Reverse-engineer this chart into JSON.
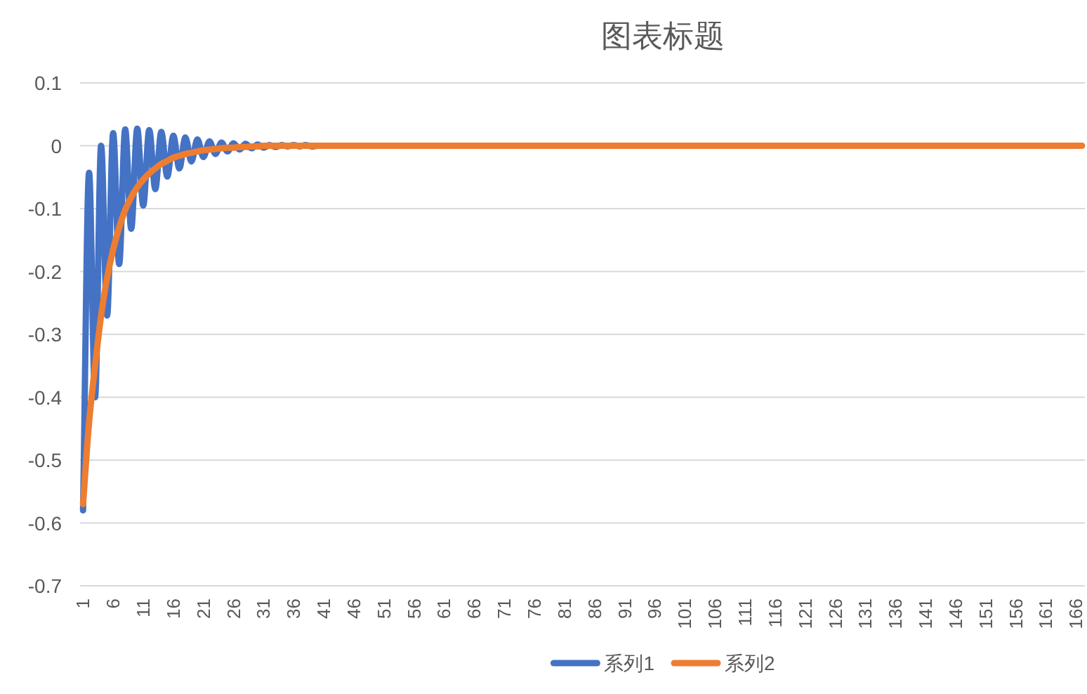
{
  "chart_data": {
    "type": "line",
    "title": "图表标题",
    "categories": [
      "1",
      null,
      null,
      null,
      null,
      "6",
      null,
      null,
      null,
      null,
      "11",
      null,
      null,
      null,
      null,
      "16",
      null,
      null,
      null,
      null,
      "21",
      null,
      null,
      null,
      null,
      "26",
      null,
      null,
      null,
      null,
      "31",
      null,
      null,
      null,
      null,
      "36",
      null,
      null,
      null,
      null,
      "41",
      null,
      null,
      null,
      null,
      "46",
      null,
      null,
      null,
      null,
      "51",
      null,
      null,
      null,
      null,
      "56",
      null,
      null,
      null,
      null,
      "61",
      null,
      null,
      null,
      null,
      "66",
      null,
      null,
      null,
      null,
      "71",
      null,
      null,
      null,
      null,
      "76",
      null,
      null,
      null,
      null,
      "81",
      null,
      null,
      null,
      null,
      "86",
      null,
      null,
      null,
      null,
      "91",
      null,
      null,
      null,
      null,
      "96",
      null,
      null,
      null,
      null,
      "101",
      null,
      null,
      null,
      null,
      "106",
      null,
      null,
      null,
      null,
      "111",
      null,
      null,
      null,
      null,
      "116",
      null,
      null,
      null,
      null,
      "121",
      null,
      null,
      null,
      null,
      "126",
      null,
      null,
      null,
      null,
      "131",
      null,
      null,
      null,
      null,
      "136",
      null,
      null,
      null,
      null,
      "141",
      null,
      null,
      null,
      null,
      "146",
      null,
      null,
      null,
      null,
      "151",
      null,
      null,
      null,
      null,
      "156",
      null,
      null,
      null,
      null,
      "161",
      null,
      null,
      null,
      null,
      "166",
      null
    ],
    "series": [
      {
        "name": "系列1",
        "color": "#4472c4",
        "values": [
          -0.58,
          -0.043,
          -0.4,
          0,
          -0.27,
          0.02,
          -0.188,
          0.026,
          -0.132,
          0.027,
          -0.095,
          0.025,
          -0.069,
          0.022,
          -0.049,
          0.016,
          -0.036,
          0.013,
          -0.025,
          0.01,
          -0.018,
          0.007,
          -0.013,
          0.005,
          -0.009,
          0.004,
          -0.006,
          0.003,
          -0.004,
          0.002,
          -0.003,
          0.001,
          -0.002,
          0.001,
          -0.001,
          0.001,
          -0.001,
          0.001,
          -0.001,
          0,
          0,
          null,
          null,
          null,
          null,
          null,
          null,
          null,
          null,
          null,
          null,
          null,
          null,
          null,
          null,
          null,
          null,
          null,
          null,
          null,
          null,
          null,
          null,
          null,
          null,
          null,
          null,
          null,
          null,
          null,
          null,
          null,
          null,
          null,
          null,
          null,
          null,
          null,
          null,
          null,
          null,
          null,
          null,
          null,
          null,
          null,
          null,
          null,
          null,
          null,
          null,
          null,
          null,
          null,
          null,
          null,
          null,
          null,
          null,
          null,
          null,
          null,
          null,
          null,
          null,
          null,
          null,
          null,
          null,
          null,
          null,
          null,
          null,
          null,
          null,
          null,
          null,
          null,
          null,
          null,
          null,
          null,
          null,
          null,
          null,
          null,
          null,
          null,
          null,
          null,
          null,
          null,
          null,
          null,
          null,
          null,
          null,
          null,
          null,
          null,
          null,
          null,
          null,
          null,
          null,
          null,
          null,
          null,
          null,
          null,
          null,
          null,
          null,
          null,
          null,
          null,
          null,
          null,
          null,
          null,
          null,
          null,
          null,
          null,
          null,
          null,
          null
        ]
      },
      {
        "name": "系列2",
        "color": "#ed7d31",
        "values": [
          -0.57,
          -0.44,
          -0.35,
          -0.27,
          -0.21,
          -0.165,
          -0.13,
          -0.102,
          -0.082,
          -0.066,
          -0.054,
          -0.044,
          -0.036,
          -0.029,
          -0.024,
          -0.019,
          -0.016,
          -0.013,
          -0.011,
          -0.009,
          -0.007,
          -0.006,
          -0.005,
          -0.004,
          -0.003,
          -0.003,
          -0.002,
          -0.002,
          -0.001,
          -0.001,
          0,
          0,
          0,
          0,
          0,
          0,
          0,
          0,
          0,
          0,
          0,
          0,
          0,
          0,
          0,
          0,
          0,
          0,
          0,
          0,
          0,
          0,
          0,
          0,
          0,
          0,
          0,
          0,
          0,
          0,
          0,
          0,
          0,
          0,
          0,
          0,
          0,
          0,
          0,
          0,
          0,
          0,
          0,
          0,
          0,
          0,
          0,
          0,
          0,
          0,
          0,
          0,
          0,
          0,
          0,
          0,
          0,
          0,
          0,
          0,
          0,
          0,
          0,
          0,
          0,
          0,
          0,
          0,
          0,
          0,
          0,
          0,
          0,
          0,
          0,
          0,
          0,
          0,
          0,
          0,
          0,
          0,
          0,
          0,
          0,
          0,
          0,
          0,
          0,
          0,
          0,
          0,
          0,
          0,
          0,
          0,
          0,
          0,
          0,
          0,
          0,
          0,
          0,
          0,
          0,
          0,
          0,
          0,
          0,
          0,
          0,
          0,
          0,
          0,
          0,
          0,
          0,
          0,
          0,
          0,
          0,
          0,
          0,
          0,
          0,
          0,
          0,
          0,
          0,
          0,
          0,
          0,
          0,
          0,
          0,
          0,
          0
        ]
      }
    ],
    "ylim": [
      -0.7,
      0.1
    ],
    "yticks": [
      0.1,
      0,
      -0.1,
      -0.2,
      -0.3,
      -0.4,
      -0.5,
      -0.6,
      -0.7
    ],
    "grid": "y",
    "legend": "bottom"
  }
}
